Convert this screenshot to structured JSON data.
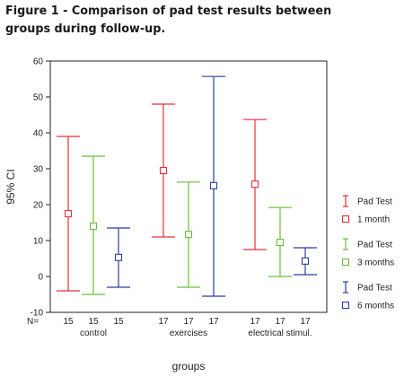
{
  "title": "Figure 1 - Comparison of pad test results between groups during follow-up.",
  "chart_data": {
    "type": "errorbar",
    "ylabel": "95% CI",
    "xlabel": "groups",
    "ylim": [
      -10,
      60
    ],
    "yticks": [
      -10,
      0,
      10,
      20,
      30,
      40,
      50,
      60
    ],
    "n_label": "N=",
    "groups": [
      {
        "name": "control",
        "points": [
          {
            "n": "15",
            "series": 0,
            "low": -4,
            "mean": 17.5,
            "high": 39
          },
          {
            "n": "15",
            "series": 1,
            "low": -5,
            "mean": 14,
            "high": 33.5
          },
          {
            "n": "15",
            "series": 2,
            "low": -3,
            "mean": 5.3,
            "high": 13.5
          }
        ]
      },
      {
        "name": "exercises",
        "points": [
          {
            "n": "17",
            "series": 0,
            "low": 11,
            "mean": 29.5,
            "high": 48
          },
          {
            "n": "17",
            "series": 1,
            "low": -3,
            "mean": 11.7,
            "high": 26.3
          },
          {
            "n": "17",
            "series": 2,
            "low": -5.5,
            "mean": 25.3,
            "high": 55.7
          }
        ]
      },
      {
        "name": "electrical stimul.",
        "points": [
          {
            "n": "17",
            "series": 0,
            "low": 7.5,
            "mean": 25.7,
            "high": 43.7
          },
          {
            "n": "17",
            "series": 1,
            "low": 0,
            "mean": 9.5,
            "high": 19.2
          },
          {
            "n": "17",
            "series": 2,
            "low": 0.5,
            "mean": 4.3,
            "high": 8
          }
        ]
      }
    ],
    "series": [
      {
        "bar_label": "Pad Test",
        "mean_label": "1 month",
        "color": "#e8303a"
      },
      {
        "bar_label": "Pad Test",
        "mean_label": "3 months",
        "color": "#6dbd3c"
      },
      {
        "bar_label": "Pad Test",
        "mean_label": "6 months",
        "color": "#2b3f9e"
      }
    ],
    "legend_position": "right"
  }
}
